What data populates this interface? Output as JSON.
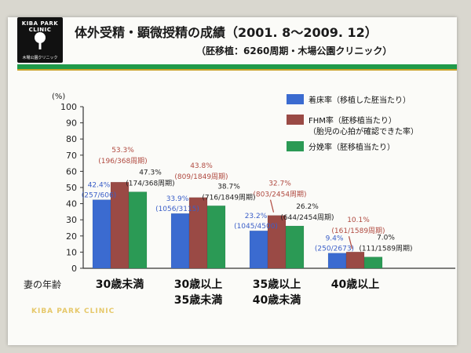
{
  "logo": {
    "text": "KIBA PARK CLINIC",
    "subtext": "木場公園クリニック"
  },
  "header": {
    "title": "体外受精・顕微授精の成績（2001. 8〜2009. 12）",
    "subtitle": "（胚移植：6260周期・木場公園クリニック）"
  },
  "footer": {
    "text": "KIBA PARK CLINIC"
  },
  "colors": {
    "blue": "#3b6bd0",
    "red": "#9a4a45",
    "green": "#2b9a55"
  },
  "chart_data": {
    "type": "bar",
    "y_unit_label": "(%)",
    "ylim": [
      0,
      100
    ],
    "yticks": [
      0,
      10,
      20,
      30,
      40,
      50,
      60,
      70,
      80,
      90,
      100
    ],
    "x_axis_label": "妻の年齢",
    "categories": [
      "30歳未満",
      "30歳以上\n35歳未満",
      "35歳以上\n40歳未満",
      "40歳以上"
    ],
    "series": [
      {
        "name": "着床率（移植した胚当たり）",
        "color": "#3b6bd0",
        "values": [
          42.4,
          33.9,
          23.2,
          9.4
        ],
        "pct_labels": [
          "42.4%",
          "33.9%",
          "23.2%",
          "9.4%"
        ],
        "detail_labels": [
          "(257/606)",
          "(1056/3115)",
          "(1045/4500)",
          "(250/2673)"
        ]
      },
      {
        "name": "FHM率（胚移植当たり）\n（胎児の心拍が確認できた率）",
        "color": "#9a4a45",
        "values": [
          53.3,
          43.8,
          32.7,
          10.1
        ],
        "pct_labels": [
          "53.3%",
          "43.8%",
          "32.7%",
          "10.1%"
        ],
        "detail_labels": [
          "(196/368周期)",
          "(809/1849周期)",
          "(803/2454周期)",
          "(161/1589周期)"
        ]
      },
      {
        "name": "分娩率（胚移植当たり）",
        "color": "#2b9a55",
        "values": [
          47.3,
          38.7,
          26.2,
          7.0
        ],
        "pct_labels": [
          "47.3%",
          "38.7%",
          "26.2%",
          "7.0%"
        ],
        "detail_labels": [
          "(174/368周期)",
          "(716/1849周期)",
          "(644/2454周期)",
          "(111/1589周期)"
        ]
      }
    ],
    "grid": false,
    "legend_position": "top-right"
  }
}
